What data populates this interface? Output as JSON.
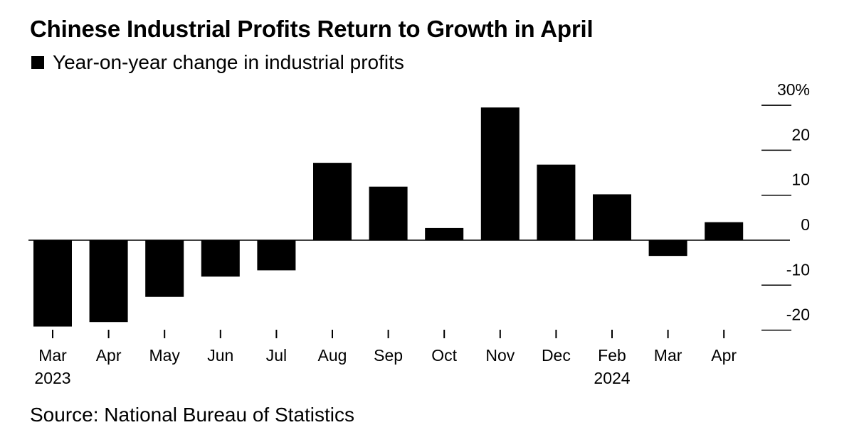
{
  "chart_data": {
    "type": "bar",
    "title": "Chinese Industrial Profits Return to Growth in April",
    "legend": "Year-on-year change in industrial profits",
    "source": "Source: National Bureau of Statistics",
    "categories": [
      "Mar",
      "Apr",
      "May",
      "Jun",
      "Jul",
      "Aug",
      "Sep",
      "Oct",
      "Nov",
      "Dec",
      "Feb",
      "Mar",
      "Apr"
    ],
    "years": [
      "2023",
      "",
      "",
      "",
      "",
      "",
      "",
      "",
      "",
      "",
      "2024",
      "",
      ""
    ],
    "values": [
      -19.2,
      -18.2,
      -12.6,
      -8.1,
      -6.7,
      17.2,
      11.9,
      2.7,
      29.5,
      16.8,
      10.2,
      -3.5,
      4.0
    ],
    "ylim": [
      -20,
      30
    ],
    "yticks": [
      30,
      20,
      10,
      0,
      -10,
      -20
    ],
    "ytick_labels": [
      "30%",
      "20",
      "10",
      "0",
      "-10",
      "-20"
    ],
    "color": "#000000",
    "ylabel": "",
    "xlabel": "",
    "grid": false
  }
}
